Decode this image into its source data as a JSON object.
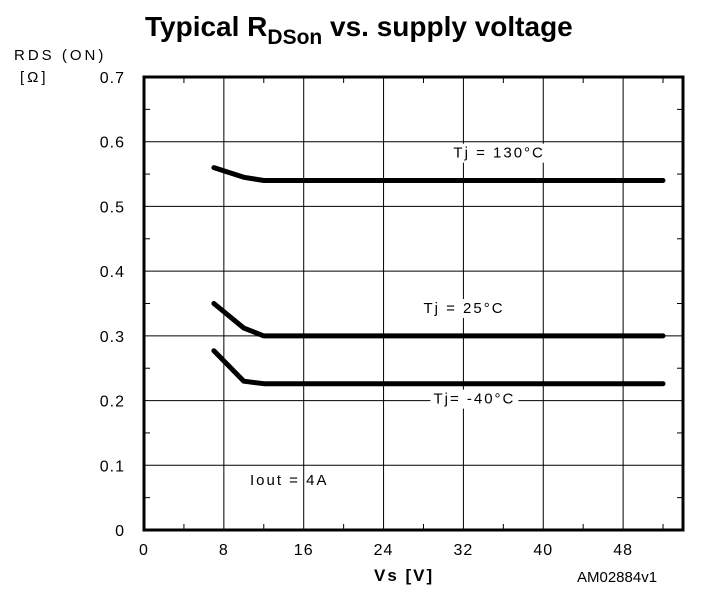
{
  "chart_data": {
    "type": "line",
    "title_main": "Typical R",
    "title_sub": "DSon",
    "title_rest": " vs. supply voltage",
    "ylabel_line1": "RDS (ON)",
    "ylabel_line2": "[Ω]",
    "xlabel": "Vs [V]",
    "code": "AM02884v1",
    "note": "Iout = 4A",
    "xlim": [
      0,
      54
    ],
    "ylim": [
      0,
      0.7
    ],
    "xticks": [
      0,
      8,
      16,
      24,
      32,
      40,
      48
    ],
    "xtick_labels": [
      "0",
      "8",
      "16",
      "24",
      "32",
      "40",
      "48"
    ],
    "yticks": [
      0,
      0.1,
      0.2,
      0.3,
      0.4,
      0.5,
      0.6,
      0.7
    ],
    "ytick_labels": [
      "0",
      "0.1",
      "0.2",
      "0.3",
      "0.4",
      "0.5",
      "0.6",
      "0.7"
    ],
    "grid": true,
    "series": [
      {
        "name": "Tj = 130°C",
        "x": [
          7,
          10,
          12,
          52
        ],
        "y": [
          0.56,
          0.545,
          0.54,
          0.54
        ],
        "label_x": 31,
        "label_y": 0.583
      },
      {
        "name": "Tj = 25°C",
        "x": [
          7,
          10,
          12,
          52
        ],
        "y": [
          0.35,
          0.312,
          0.3,
          0.3
        ],
        "label_x": 28,
        "label_y": 0.343
      },
      {
        "name": "Tj= -40°C",
        "x": [
          7,
          10,
          12,
          52
        ],
        "y": [
          0.277,
          0.23,
          0.226,
          0.226
        ],
        "label_x": 29,
        "label_y": 0.203
      }
    ]
  }
}
